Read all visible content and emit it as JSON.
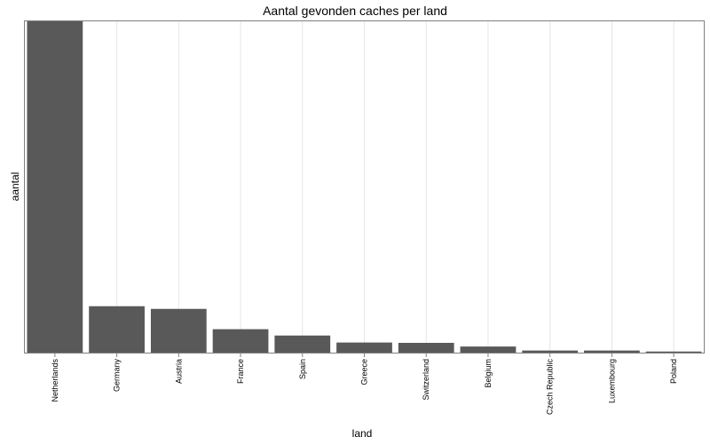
{
  "chart_data": {
    "type": "bar",
    "title": "Aantal gevonden caches per land",
    "xlabel": "land",
    "ylabel": "aantal",
    "categories": [
      "Netherlands",
      "Germany",
      "Austria",
      "France",
      "Spain",
      "Greece",
      "Switzerland",
      "Belgium",
      "Czech Republic",
      "Luxembourg",
      "Poland"
    ],
    "values": [
      100,
      14.2,
      13.4,
      7.3,
      5.4,
      3.3,
      3.2,
      2.1,
      0.9,
      0.9,
      0.6
    ],
    "ylim": [
      0,
      100
    ],
    "y_tick_labels_shown": false,
    "grid": "vertical",
    "bar_color": "#595959",
    "grid_color": "#e5e5e5",
    "panel_border_color": "#7f7f7f"
  }
}
